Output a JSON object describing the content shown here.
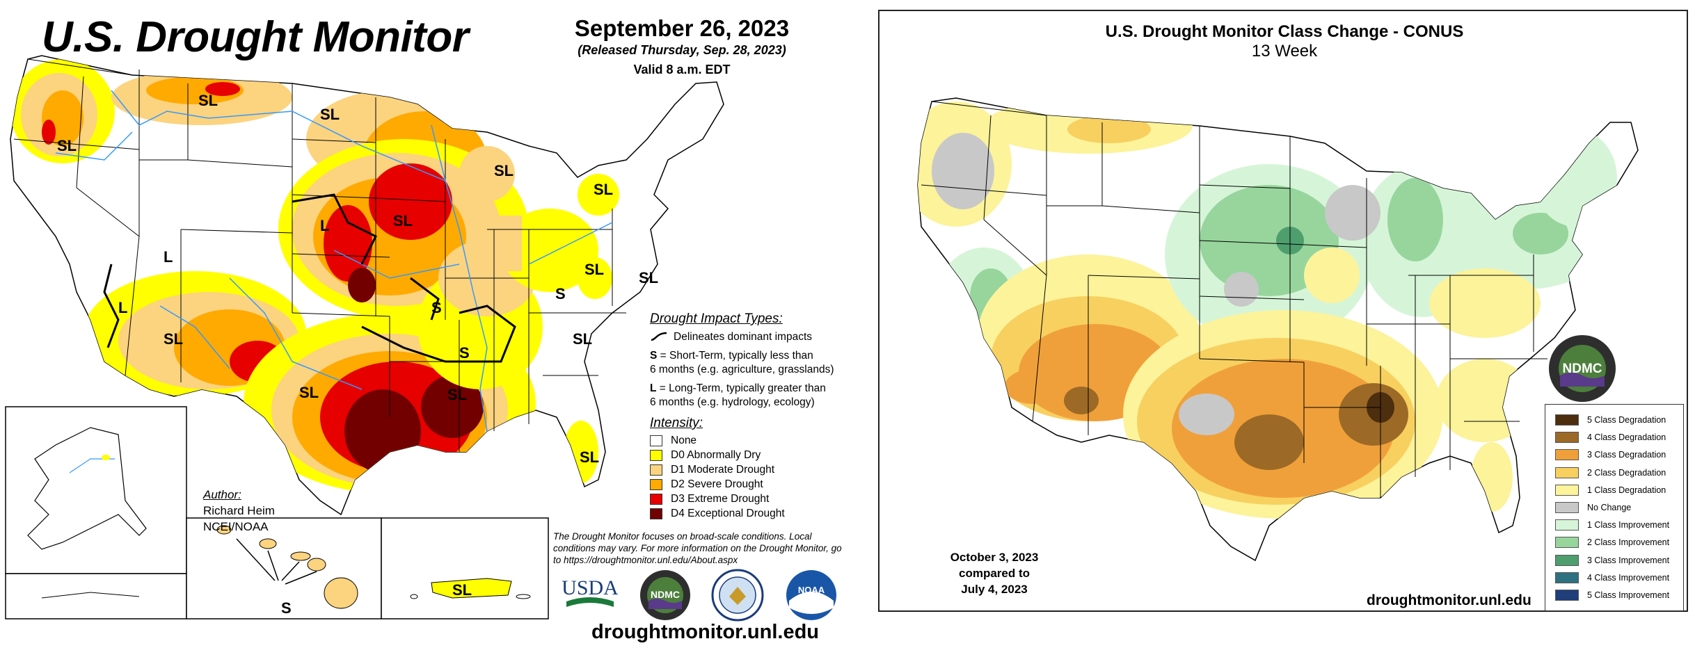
{
  "left": {
    "title": "U.S. Drought Monitor",
    "date": "September 26, 2023",
    "released": "(Released Thursday, Sep. 28, 2023)",
    "valid": "Valid 8 a.m. EDT",
    "impact_types": {
      "heading": "Drought Impact Types:",
      "delineates": "Delineates dominant impacts",
      "s_key": "S",
      "s_text": " = Short-Term, typically less than",
      "s_text2": "6 months (e.g. agriculture, grasslands)",
      "l_key": "L",
      "l_text": " = Long-Term, typically greater than",
      "l_text2": "6 months (e.g. hydrology, ecology)"
    },
    "intensity": {
      "heading": "Intensity:",
      "items": [
        {
          "label": "None",
          "color": "#ffffff"
        },
        {
          "label": "D0 Abnormally Dry",
          "color": "#ffff00"
        },
        {
          "label": "D1 Moderate Drought",
          "color": "#fcd37f"
        },
        {
          "label": "D2 Severe Drought",
          "color": "#ffaa00"
        },
        {
          "label": "D3 Extreme Drought",
          "color": "#e60000"
        },
        {
          "label": "D4 Exceptional Drought",
          "color": "#730000"
        }
      ]
    },
    "author": {
      "heading": "Author:",
      "name": "Richard Heim",
      "org": "NCEI/NOAA"
    },
    "note": "The Drought Monitor focuses on broad-scale conditions. Local conditions may vary. For more information on the Drought Monitor, go to https://droughtmonitor.unl.edu/About.aspx",
    "url": "droughtmonitor.unl.edu",
    "logos": {
      "usda": "USDA",
      "ndmc": "NDMC",
      "noaa": "NOAA"
    },
    "map_labels": [
      "SL",
      "SL",
      "SL",
      "SL",
      "SL",
      "L",
      "SL",
      "SL",
      "SL",
      "L",
      "L",
      "SL",
      "S",
      "S",
      "S",
      "SL",
      "SL",
      "SL",
      "SL",
      "S",
      "SL"
    ]
  },
  "right": {
    "title": "U.S. Drought Monitor Class Change - CONUS",
    "subtitle": "13 Week",
    "date_line1": "October 3, 2023",
    "date_line2": "compared to",
    "date_line3": "July 4, 2023",
    "url": "droughtmonitor.unl.edu",
    "logo": "NDMC",
    "legend": [
      {
        "label": "5 Class Degradation",
        "color": "#4d2e0e"
      },
      {
        "label": "4 Class Degradation",
        "color": "#9c6a26"
      },
      {
        "label": "3 Class Degradation",
        "color": "#f0a03a"
      },
      {
        "label": "2 Class Degradation",
        "color": "#f7d060"
      },
      {
        "label": "1 Class Degradation",
        "color": "#fcf39a"
      },
      {
        "label": "No Change",
        "color": "#c8c8c8"
      },
      {
        "label": "1 Class Improvement",
        "color": "#d6f5d8"
      },
      {
        "label": "2 Class Improvement",
        "color": "#97d59c"
      },
      {
        "label": "3 Class Improvement",
        "color": "#4e9e6e"
      },
      {
        "label": "4 Class Improvement",
        "color": "#2e7180"
      },
      {
        "label": "5 Class Improvement",
        "color": "#1f3e7a"
      }
    ]
  }
}
